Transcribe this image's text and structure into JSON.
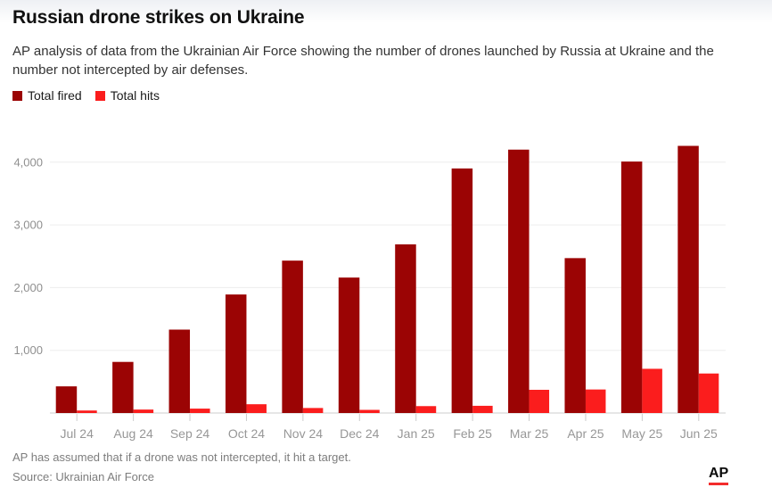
{
  "page": {
    "title": "Russian drone strikes on Ukraine",
    "subtitle": "AP analysis of data from the Ukrainian Air Force showing the number of drones launched by Russia at Ukraine and the number not intercepted by air defenses.",
    "note": "AP has assumed that if a drone was not intercepted, it hit a target.",
    "source": "Source: Ukrainian Air Force",
    "logo": "AP"
  },
  "legend": [
    {
      "label": "Total fired",
      "color": "#9b0404"
    },
    {
      "label": "Total hits",
      "color": "#fb1d1d"
    }
  ],
  "colors": {
    "fired": "#9b0404",
    "hits": "#fb1d1d",
    "gridline": "#ededed",
    "baseline": "#d6d6d6",
    "tick": "#cccccc",
    "axis_label": "#979797",
    "logo_underline": "#f32c2c"
  },
  "chart_data": {
    "type": "bar",
    "title": "Russian drone strikes on Ukraine",
    "categories": [
      "Jul 24",
      "Aug 24",
      "Sep 24",
      "Oct 24",
      "Nov 24",
      "Dec 24",
      "Jan 25",
      "Feb 25",
      "Mar 25",
      "Apr 25",
      "May 25",
      "Jun 25"
    ],
    "series": [
      {
        "name": "Total fired",
        "color": "#9b0404",
        "values": [
          425,
          815,
          1330,
          1890,
          2430,
          2160,
          2690,
          3900,
          4200,
          2470,
          4010,
          4260
        ]
      },
      {
        "name": "Total hits",
        "color": "#fb1d1d",
        "values": [
          40,
          55,
          70,
          140,
          80,
          50,
          110,
          115,
          370,
          375,
          705,
          630
        ]
      }
    ],
    "xlabel": "",
    "ylabel": "",
    "ylim": [
      0,
      4400
    ],
    "yticks": [
      1000,
      2000,
      3000,
      4000
    ],
    "grid": true,
    "legend_position": "top-left"
  }
}
